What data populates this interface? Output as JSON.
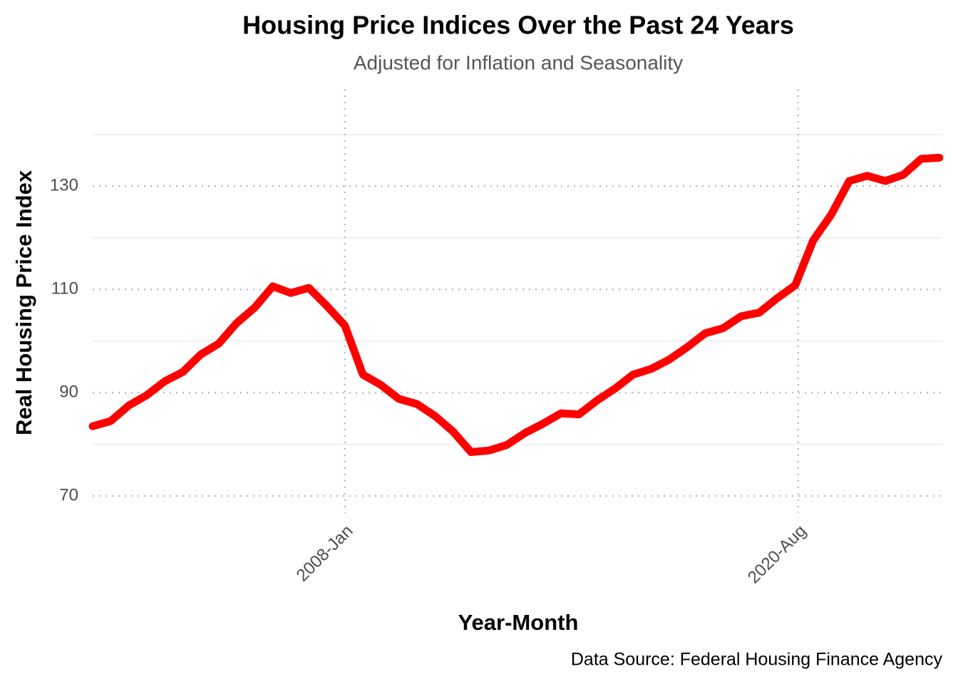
{
  "chart_data": {
    "type": "line",
    "title": "Housing Price Indices Over the Past 24 Years",
    "subtitle": "Adjusted for Inflation and Seasonality",
    "x_label": "Year-Month",
    "y_label": "Real Housing Price Index",
    "caption": "Data Source: Federal Housing Finance Agency",
    "x": [
      "2001-Jan",
      "2001-Jul",
      "2002-Jan",
      "2002-Jul",
      "2003-Jan",
      "2003-Jul",
      "2004-Jan",
      "2004-Jul",
      "2005-Jan",
      "2005-Jul",
      "2006-Jan",
      "2006-Jul",
      "2007-Jan",
      "2007-Jul",
      "2008-Jan",
      "2008-Jul",
      "2009-Jan",
      "2009-Jul",
      "2010-Jan",
      "2010-Jul",
      "2011-Jan",
      "2011-Jul",
      "2012-Jan",
      "2012-Jul",
      "2013-Jan",
      "2013-Jul",
      "2014-Jan",
      "2014-Jul",
      "2015-Jan",
      "2015-Jul",
      "2016-Jan",
      "2016-Jul",
      "2017-Jan",
      "2017-Jul",
      "2018-Jan",
      "2018-Jul",
      "2019-Jan",
      "2019-Jul",
      "2020-Jan",
      "2020-Jul",
      "2021-Jan",
      "2021-Jul",
      "2022-Jan",
      "2022-Jul",
      "2023-Jan",
      "2023-Jul",
      "2024-Jan",
      "2024-Jul"
    ],
    "series": [
      {
        "name": "Real Housing Price Index",
        "color": "#ff0000",
        "values": [
          83.5,
          84.5,
          87.5,
          89.5,
          92.2,
          94.0,
          97.4,
          99.5,
          103.5,
          106.5,
          110.6,
          109.3,
          110.3,
          106.8,
          103.0,
          93.5,
          91.5,
          88.8,
          87.8,
          85.5,
          82.5,
          78.5,
          78.8,
          79.9,
          82.2,
          84.0,
          86.0,
          85.8,
          88.5,
          90.8,
          93.5,
          94.6,
          96.4,
          98.8,
          101.5,
          102.5,
          104.8,
          105.5,
          108.3,
          110.8,
          119.5,
          124.5,
          131.0,
          132.0,
          131.0,
          132.2,
          135.3,
          135.5
        ]
      }
    ],
    "xlim": [
      "2001-Jan",
      "2024-Aug"
    ],
    "xticks": [
      "2008-Jan",
      "2020-Aug"
    ],
    "ylim": [
      66.7,
      148.8
    ],
    "yticks": [
      70,
      90,
      110,
      130
    ],
    "y_minor_grid": [
      80,
      100,
      120,
      140
    ],
    "grid": true
  }
}
